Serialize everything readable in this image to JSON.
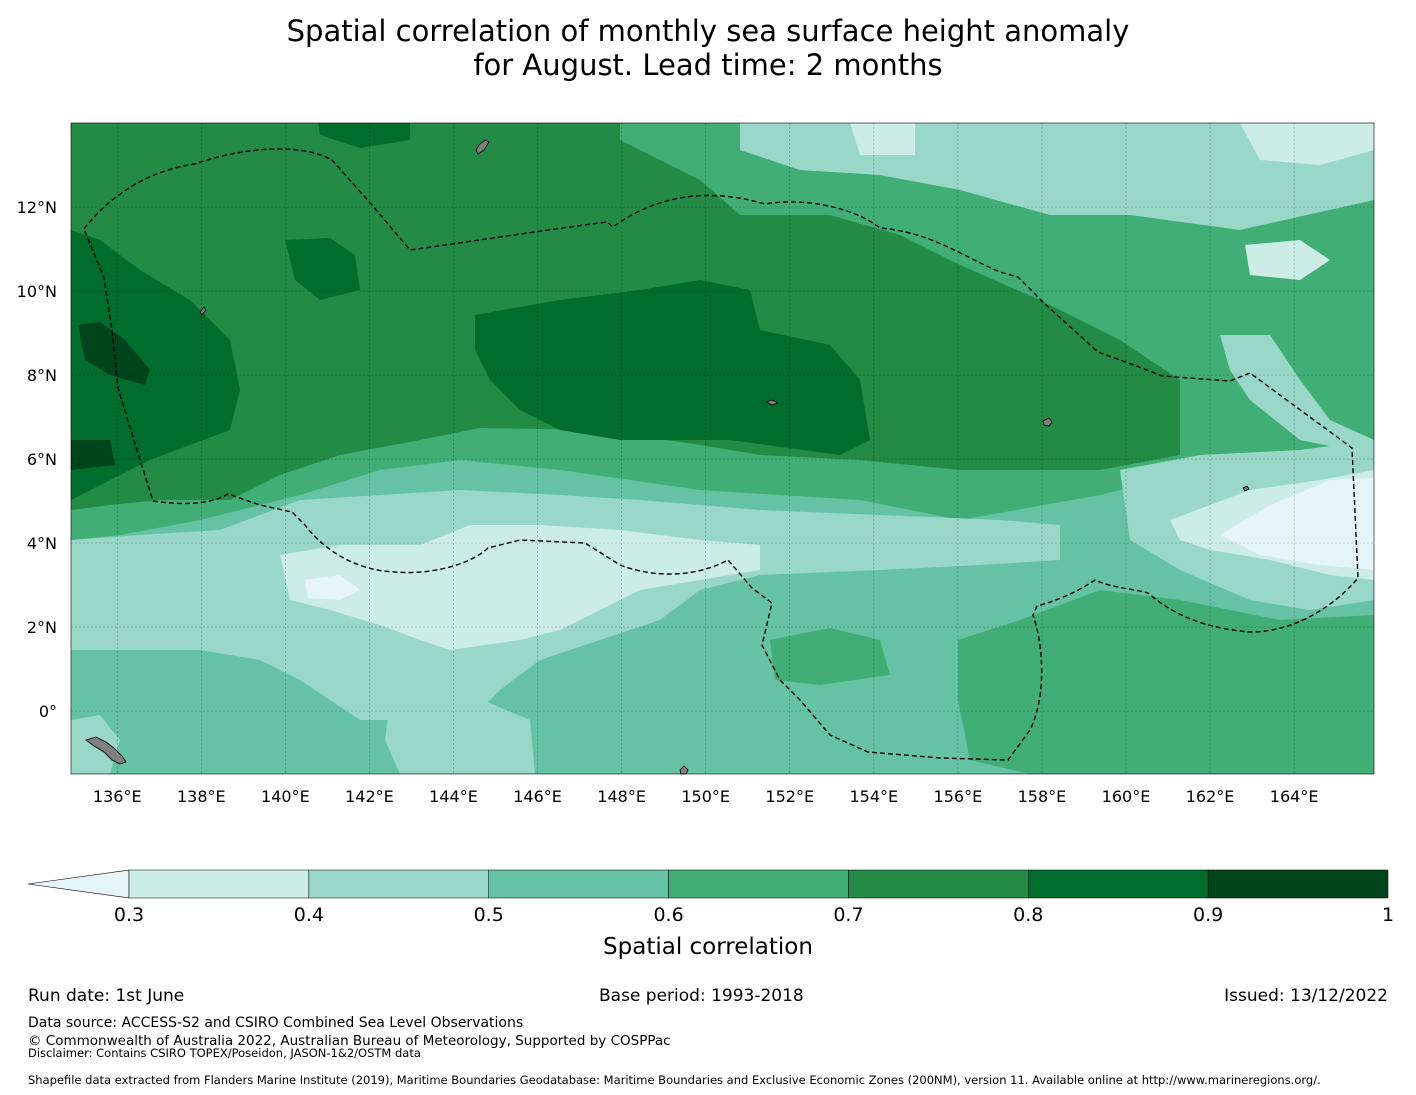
{
  "title": {
    "line1": "Spatial correlation of monthly sea surface height anomaly",
    "line2": "for August. Lead time: 2 months"
  },
  "map": {
    "lon_ticks": [
      "136°E",
      "138°E",
      "140°E",
      "142°E",
      "144°E",
      "146°E",
      "148°E",
      "150°E",
      "152°E",
      "154°E",
      "156°E",
      "158°E",
      "160°E",
      "162°E",
      "164°E"
    ],
    "lat_ticks": [
      "12°N",
      "10°N",
      "8°N",
      "6°N",
      "4°N",
      "2°N",
      "0°"
    ],
    "lon_range": [
      134.9,
      165.9
    ],
    "lat_range": [
      -1.5,
      14.0
    ],
    "land_color": "#808080"
  },
  "colorbar": {
    "title": "Spatial correlation",
    "tick_labels": [
      "0.3",
      "0.4",
      "0.5",
      "0.6",
      "0.7",
      "0.8",
      "0.9",
      "1"
    ],
    "extend": "min",
    "colors": [
      "#e5f4f9",
      "#ccece6",
      "#99d8c9",
      "#66c2a4",
      "#41ae76",
      "#238b45",
      "#006d2c",
      "#00441b"
    ]
  },
  "footer": {
    "run_date": "Run date: 1st June",
    "base_period": "Base period: 1993-2018",
    "issued": "Issued: 13/12/2022",
    "data_source": "Data source: ACCESS-S2 and CSIRO Combined Sea Level Observations",
    "copyright": "© Commonwealth of Australia 2022, Australian Bureau of Meteorology, Supported by COSPPac",
    "disclaimer": "Disclaimer: Contains CSIRO TOPEX/Poseidon, JASON-1&2/OSTM data",
    "shapefile": "Shapefile data extracted from Flanders Marine Institute (2019), Maritime Boundaries Geodatabase: Maritime Boundaries and Exclusive Economic Zones (200NM), version 11. Available online at http://www.marineregions.org/."
  }
}
